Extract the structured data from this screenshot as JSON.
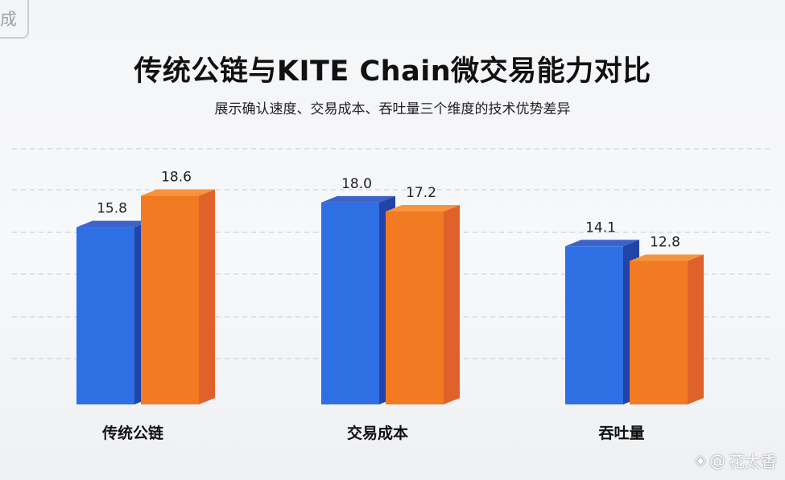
{
  "corner_badge": "成",
  "title": "传统公链与KITE Chain微交易能力对比",
  "subtitle": "展示确认速度、交易成本、吞吐量三个维度的技术优势差异",
  "watermark": {
    "at": "@",
    "name": "花太香"
  },
  "colors": {
    "blue_front": "#2f6fe4",
    "blue_side": "#2243a8",
    "blue_top": "#3d63c8",
    "orange_front": "#f27a22",
    "orange_side": "#e0622a",
    "orange_top": "#f3953e",
    "grid": "#cfd3d9"
  },
  "chart_data": {
    "type": "bar",
    "categories": [
      "传统公链",
      "交易成本",
      "吞吐量"
    ],
    "series": [
      {
        "values": [
          15.8,
          18.0,
          14.1
        ],
        "color": "blue"
      },
      {
        "values": [
          18.6,
          17.2,
          12.8
        ],
        "color": "orange"
      }
    ],
    "value_labels": [
      [
        "15.8",
        "18.0",
        "14.1"
      ],
      [
        "18.6",
        "17.2",
        "12.8"
      ]
    ],
    "grid": true,
    "legend": "none",
    "style": "3d"
  }
}
